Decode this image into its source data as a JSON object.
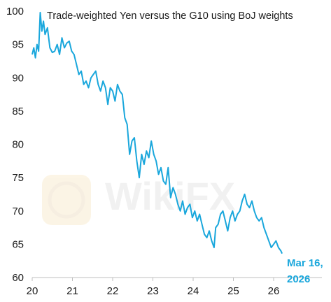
{
  "chart_data": {
    "type": "line",
    "title": "Trade-weighted Yen versus the G10 using BoJ weights",
    "xlabel": "",
    "ylabel": "",
    "xlim": [
      20,
      27.2
    ],
    "ylim": [
      60,
      100
    ],
    "x_ticks": [
      "20",
      "21",
      "22",
      "23",
      "24",
      "25",
      "26"
    ],
    "y_ticks": [
      "60",
      "65",
      "70",
      "75",
      "80",
      "85",
      "90",
      "95",
      "100"
    ],
    "grid": false,
    "line_color": "#1aa7dc",
    "end_label": [
      "Mar 16,",
      "2026"
    ],
    "series": [
      {
        "x": [
          20.0,
          20.04,
          20.08,
          20.12,
          20.16,
          20.2,
          20.24,
          20.28,
          20.32,
          20.38,
          20.44,
          20.5,
          20.56,
          20.62,
          20.68,
          20.74,
          20.8,
          20.86,
          20.92,
          20.98,
          21.04,
          21.1,
          21.16,
          21.22,
          21.28,
          21.34,
          21.4,
          21.46,
          21.52,
          21.58,
          21.64,
          21.7,
          21.76,
          21.82,
          21.88,
          21.94,
          22.0,
          22.06,
          22.12,
          22.18,
          22.24,
          22.3,
          22.36,
          22.42,
          22.48,
          22.54,
          22.6,
          22.66,
          22.72,
          22.78,
          22.84,
          22.9,
          22.96,
          23.02,
          23.08,
          23.14,
          23.2,
          23.26,
          23.32,
          23.38,
          23.44,
          23.5,
          23.56,
          23.62,
          23.68,
          23.74,
          23.8,
          23.86,
          23.92,
          23.98,
          24.04,
          24.1,
          24.16,
          24.22,
          24.28,
          24.34,
          24.4,
          24.46,
          24.52,
          24.56,
          24.62,
          24.68,
          24.74,
          24.8,
          24.86,
          24.92,
          24.98,
          25.04,
          25.1,
          25.16,
          25.22,
          25.28,
          25.34,
          25.4,
          25.46,
          25.52,
          25.58,
          25.64,
          25.7,
          25.76,
          25.82,
          25.88,
          25.94,
          26.0,
          26.06,
          26.12,
          26.18,
          26.21
        ],
        "y": [
          93.5,
          94.5,
          93.0,
          95.0,
          94.0,
          99.8,
          97.0,
          98.5,
          96.5,
          97.5,
          94.5,
          93.8,
          94.0,
          95.0,
          93.5,
          96.0,
          94.5,
          95.2,
          95.5,
          94.0,
          93.5,
          92.0,
          90.5,
          91.0,
          89.0,
          89.5,
          88.5,
          90.0,
          90.5,
          91.0,
          89.0,
          88.0,
          89.5,
          88.5,
          86.0,
          88.5,
          88.0,
          86.5,
          89.0,
          88.0,
          87.5,
          84.0,
          83.0,
          78.5,
          80.5,
          81.0,
          77.5,
          75.0,
          78.5,
          77.0,
          79.0,
          78.0,
          80.5,
          78.5,
          77.5,
          75.5,
          76.5,
          74.5,
          74.0,
          76.5,
          72.0,
          73.5,
          72.5,
          71.0,
          70.0,
          71.5,
          69.5,
          70.5,
          71.0,
          69.0,
          70.0,
          68.5,
          69.5,
          68.0,
          66.5,
          66.0,
          67.0,
          65.5,
          64.5,
          67.5,
          68.0,
          69.5,
          70.0,
          68.5,
          67.0,
          69.0,
          70.0,
          68.5,
          69.5,
          70.0,
          71.5,
          72.5,
          71.0,
          70.5,
          71.5,
          70.0,
          69.0,
          68.5,
          69.0,
          67.5,
          66.5,
          65.5,
          64.5,
          65.0,
          65.5,
          64.5,
          64.0,
          63.6
        ]
      }
    ]
  }
}
